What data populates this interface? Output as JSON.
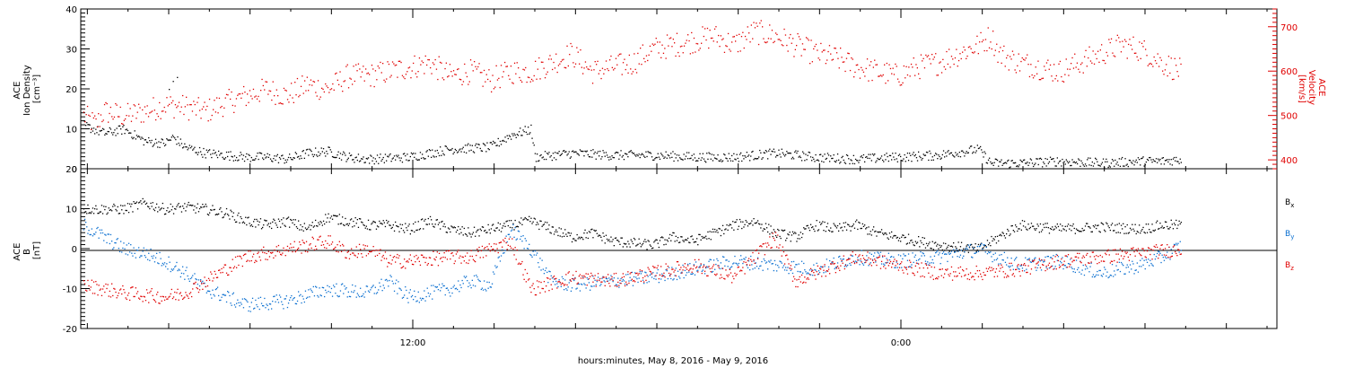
{
  "chart_data": [
    {
      "type": "scatter",
      "panel": "top",
      "ylabel_left": [
        "ACE",
        "Ion Density",
        "[cm⁻³]"
      ],
      "ylabel_right": [
        "ACE",
        "Velocity",
        "[km/s]"
      ],
      "ylim_left": [
        0,
        40
      ],
      "ylim_right": [
        380,
        740
      ],
      "yticks_left": [
        "0",
        "10",
        "20",
        "30",
        "40"
      ],
      "yticks_right": [
        "400",
        "500",
        "600",
        "700"
      ],
      "colors": {
        "density": "#000000",
        "velocity": "#e00000"
      },
      "density_anchors": [
        [
          0,
          11
        ],
        [
          0.5,
          9
        ],
        [
          1,
          10
        ],
        [
          1.5,
          7
        ],
        [
          2,
          6.5
        ],
        [
          2.2,
          8
        ],
        [
          2.5,
          5.5
        ],
        [
          3,
          4
        ],
        [
          3.5,
          3.5
        ],
        [
          4,
          3
        ],
        [
          4.5,
          3
        ],
        [
          5,
          2.5
        ],
        [
          5.5,
          4
        ],
        [
          6,
          4.5
        ],
        [
          6.5,
          3
        ],
        [
          7,
          2.5
        ],
        [
          8,
          3
        ],
        [
          8.5,
          4
        ],
        [
          9,
          5
        ],
        [
          10,
          5.5
        ],
        [
          10.5,
          8.5
        ],
        [
          11,
          10
        ],
        [
          11.1,
          3
        ],
        [
          12,
          4
        ],
        [
          13,
          3.5
        ],
        [
          14,
          3.5
        ],
        [
          15,
          3
        ],
        [
          16,
          3
        ],
        [
          17,
          4
        ],
        [
          18,
          3
        ],
        [
          19,
          2.5
        ],
        [
          20,
          3
        ],
        [
          21,
          3.5
        ],
        [
          22,
          5
        ],
        [
          22.3,
          1.5
        ],
        [
          23,
          1.5
        ],
        [
          24,
          2
        ],
        [
          25,
          1.5
        ],
        [
          26,
          2
        ],
        [
          26.5,
          2
        ],
        [
          27,
          2.5
        ]
      ],
      "density_extra": [
        [
          2.1,
          20
        ],
        [
          2.2,
          22
        ],
        [
          2.3,
          23
        ]
      ],
      "velocity_anchors": [
        [
          0,
          500
        ],
        [
          0.3,
          480
        ],
        [
          0.5,
          510
        ],
        [
          1,
          500
        ],
        [
          1.5,
          510
        ],
        [
          2,
          525
        ],
        [
          2.5,
          520
        ],
        [
          3,
          510
        ],
        [
          3.5,
          530
        ],
        [
          4,
          545
        ],
        [
          4.5,
          560
        ],
        [
          5,
          545
        ],
        [
          5.5,
          570
        ],
        [
          6,
          560
        ],
        [
          6.5,
          590
        ],
        [
          7,
          590
        ],
        [
          7.5,
          600
        ],
        [
          8,
          610
        ],
        [
          8.5,
          620
        ],
        [
          9,
          590
        ],
        [
          9.5,
          600
        ],
        [
          10,
          580
        ],
        [
          10.5,
          600
        ],
        [
          11,
          600
        ],
        [
          11.5,
          620
        ],
        [
          12,
          640
        ],
        [
          12.5,
          600
        ],
        [
          13,
          610
        ],
        [
          13.5,
          620
        ],
        [
          14,
          650
        ],
        [
          14.5,
          660
        ],
        [
          15,
          670
        ],
        [
          15.5,
          680
        ],
        [
          16,
          660
        ],
        [
          16.5,
          690
        ],
        [
          17,
          680
        ],
        [
          17.5,
          660
        ],
        [
          18,
          640
        ],
        [
          18.5,
          630
        ],
        [
          19,
          610
        ],
        [
          19.5,
          600
        ],
        [
          20,
          590
        ],
        [
          20.5,
          610
        ],
        [
          21,
          620
        ],
        [
          21.5,
          640
        ],
        [
          22,
          660
        ],
        [
          22.3,
          680
        ],
        [
          22.5,
          640
        ],
        [
          23,
          620
        ],
        [
          23.5,
          610
        ],
        [
          24,
          600
        ],
        [
          24.5,
          620
        ],
        [
          25,
          640
        ],
        [
          25.5,
          660
        ],
        [
          26,
          650
        ],
        [
          26.5,
          620
        ],
        [
          27,
          600
        ]
      ],
      "x_range_hours": [
        0,
        27
      ]
    },
    {
      "type": "scatter",
      "panel": "bottom",
      "ylabel_left": [
        "ACE",
        "B",
        "[nT]"
      ],
      "ylim": [
        -20,
        20
      ],
      "yticks": [
        "-20",
        "-10",
        "0",
        "10",
        "20"
      ],
      "legend": [
        "Bx",
        "By",
        "Bz"
      ],
      "colors": {
        "Bx": "#000000",
        "By": "#0a6fd0",
        "Bz": "#e00000"
      },
      "Bx_anchors": [
        [
          0,
          10
        ],
        [
          1,
          10
        ],
        [
          1.5,
          11.5
        ],
        [
          2,
          10
        ],
        [
          2.5,
          10.5
        ],
        [
          3,
          10
        ],
        [
          3.5,
          9
        ],
        [
          4,
          7
        ],
        [
          4.5,
          6
        ],
        [
          5,
          7
        ],
        [
          5.5,
          5
        ],
        [
          6,
          8
        ],
        [
          7,
          6
        ],
        [
          7.5,
          6
        ],
        [
          8,
          5
        ],
        [
          8.5,
          7
        ],
        [
          9,
          5
        ],
        [
          9.5,
          4
        ],
        [
          10,
          5
        ],
        [
          11,
          7
        ],
        [
          11.5,
          5
        ],
        [
          12,
          3
        ],
        [
          12.5,
          4
        ],
        [
          13,
          2
        ],
        [
          14,
          1
        ],
        [
          14.5,
          3
        ],
        [
          15,
          2
        ],
        [
          16,
          6
        ],
        [
          16.5,
          7
        ],
        [
          17,
          4
        ],
        [
          17.5,
          3
        ],
        [
          18,
          6
        ],
        [
          18.5,
          5
        ],
        [
          19,
          6
        ],
        [
          19.5,
          4
        ],
        [
          20,
          3
        ],
        [
          20.5,
          2
        ],
        [
          21,
          1
        ],
        [
          22,
          0
        ],
        [
          22.5,
          3
        ],
        [
          23,
          6
        ],
        [
          24,
          5
        ],
        [
          25,
          5.5
        ],
        [
          26,
          5
        ],
        [
          26.5,
          6
        ],
        [
          27,
          6
        ]
      ],
      "By_anchors": [
        [
          0,
          6
        ],
        [
          0.5,
          3
        ],
        [
          1,
          0
        ],
        [
          1.5,
          -1
        ],
        [
          2,
          -3
        ],
        [
          2.5,
          -6
        ],
        [
          3,
          -10
        ],
        [
          3.5,
          -12
        ],
        [
          4,
          -14
        ],
        [
          5,
          -13
        ],
        [
          6,
          -10
        ],
        [
          7,
          -11
        ],
        [
          7.5,
          -8
        ],
        [
          8,
          -12
        ],
        [
          9,
          -10
        ],
        [
          9.5,
          -8
        ],
        [
          10,
          -9
        ],
        [
          10.5,
          5
        ],
        [
          11,
          0
        ],
        [
          11.5,
          -8
        ],
        [
          12,
          -9
        ],
        [
          13,
          -8
        ],
        [
          14,
          -7
        ],
        [
          15,
          -5
        ],
        [
          16,
          -3
        ],
        [
          17,
          -4
        ],
        [
          18,
          -5
        ],
        [
          19,
          -2
        ],
        [
          20,
          -3
        ],
        [
          21,
          -2
        ],
        [
          22,
          0
        ],
        [
          23,
          -4
        ],
        [
          24,
          -3
        ],
        [
          25,
          -6
        ],
        [
          26,
          -4
        ],
        [
          26.5,
          -2
        ],
        [
          27,
          1
        ]
      ],
      "Bz_anchors": [
        [
          0,
          -9
        ],
        [
          1,
          -11
        ],
        [
          2,
          -12
        ],
        [
          2.5,
          -11
        ],
        [
          3,
          -8
        ],
        [
          3.5,
          -5
        ],
        [
          4,
          -2
        ],
        [
          5,
          0
        ],
        [
          6,
          2
        ],
        [
          6.5,
          -1
        ],
        [
          7,
          0
        ],
        [
          7.5,
          -3
        ],
        [
          8,
          -3
        ],
        [
          9,
          -2
        ],
        [
          9.5,
          -2
        ],
        [
          10,
          0
        ],
        [
          10.5,
          2
        ],
        [
          11,
          -10
        ],
        [
          12,
          -7
        ],
        [
          13,
          -8
        ],
        [
          14,
          -6
        ],
        [
          15,
          -4
        ],
        [
          16,
          -7
        ],
        [
          17,
          3
        ],
        [
          17.5,
          -8
        ],
        [
          18,
          -6
        ],
        [
          19,
          -2
        ],
        [
          20,
          -4
        ],
        [
          21,
          -6
        ],
        [
          22,
          -6
        ],
        [
          23,
          -5
        ],
        [
          24,
          -3
        ],
        [
          25,
          -2
        ],
        [
          26,
          -1
        ],
        [
          27,
          0
        ]
      ],
      "x_range_hours": [
        0,
        27
      ]
    }
  ],
  "labels": {
    "xtick_1": "12:00",
    "xtick_2": "0:00",
    "xlabel": "hours:minutes, May  8, 2016 - May  9, 2016",
    "legend_bx": "B",
    "legend_bx_sub": "x",
    "legend_by": "B",
    "legend_by_sub": "y",
    "legend_bz": "B",
    "legend_bz_sub": "z"
  }
}
